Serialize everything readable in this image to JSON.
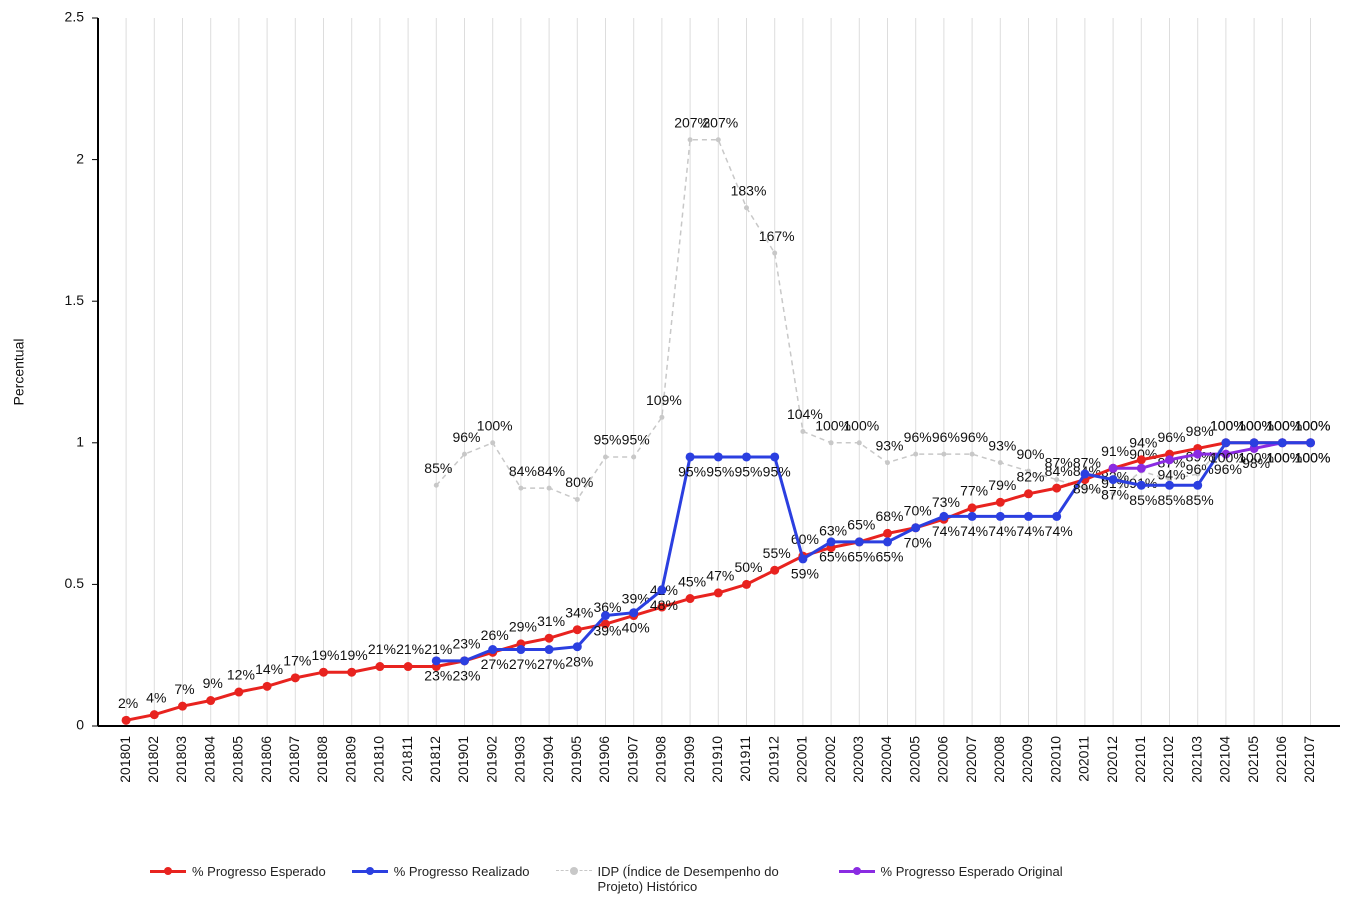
{
  "chart_data": {
    "type": "line",
    "y_label": "Percentual",
    "categories": [
      "201801",
      "201802",
      "201803",
      "201804",
      "201805",
      "201806",
      "201807",
      "201808",
      "201809",
      "201810",
      "201811",
      "201812",
      "201901",
      "201902",
      "201903",
      "201904",
      "201905",
      "201906",
      "201907",
      "201908",
      "201909",
      "201910",
      "201911",
      "201912",
      "202001",
      "202002",
      "202003",
      "202004",
      "202005",
      "202006",
      "202007",
      "202008",
      "202009",
      "202010",
      "202011",
      "202012",
      "202101",
      "202102",
      "202103",
      "202104",
      "202105",
      "202106",
      "202107"
    ],
    "ylim": [
      0,
      2.5
    ],
    "yticks": [
      0,
      0.5,
      1,
      1.5,
      2,
      2.5
    ],
    "grid": true,
    "legend": "bottom",
    "series": [
      {
        "name": "% Progresso Esperado",
        "color": "#e8231f",
        "dash": false,
        "values": [
          0.02,
          0.04,
          0.07,
          0.09,
          0.12,
          0.14,
          0.17,
          0.19,
          0.19,
          0.21,
          0.21,
          0.21,
          0.23,
          0.26,
          0.29,
          0.31,
          0.34,
          0.36,
          0.39,
          0.42,
          0.45,
          0.47,
          0.5,
          0.55,
          0.6,
          0.63,
          0.65,
          0.68,
          0.7,
          0.73,
          0.77,
          0.79,
          0.82,
          0.84,
          0.87,
          0.91,
          0.94,
          0.96,
          0.98,
          1.0,
          1.0,
          1.0,
          1.0
        ],
        "value_labels": [
          "2%",
          "4%",
          "7%",
          "9%",
          "12%",
          "14%",
          "17%",
          "19%",
          "19%",
          "21%",
          "21%",
          "21%",
          "23%",
          "26%",
          "29%",
          "31%",
          "34%",
          "36%",
          "39%",
          "42%",
          "45%",
          "47%",
          "50%",
          "55%",
          "60%",
          "63%",
          "65%",
          "68%",
          "70%",
          "73%",
          "77%",
          "79%",
          "82%",
          "84%",
          "87%",
          "91%",
          "94%",
          "96%",
          "98%",
          "100%",
          "100%",
          "100%",
          "100%"
        ]
      },
      {
        "name": "% Progresso Realizado",
        "color": "#2b3fe0",
        "dash": false,
        "values": [
          null,
          null,
          null,
          null,
          null,
          null,
          null,
          null,
          null,
          null,
          null,
          0.23,
          0.23,
          0.27,
          0.27,
          0.27,
          0.28,
          0.39,
          0.4,
          0.48,
          0.95,
          0.95,
          0.95,
          0.95,
          0.59,
          0.65,
          0.65,
          0.65,
          0.7,
          0.74,
          0.74,
          0.74,
          0.74,
          0.74,
          0.89,
          0.87,
          0.85,
          0.85,
          0.85,
          1.0,
          1.0,
          1.0,
          1.0
        ],
        "value_labels": [
          null,
          null,
          null,
          null,
          null,
          null,
          null,
          null,
          null,
          null,
          null,
          "23%",
          "23%",
          "27%",
          "27%",
          "27%",
          "28%",
          "39%",
          "40%",
          "48%",
          "95%",
          "95%",
          "95%",
          "95%",
          "59%",
          "65%",
          "65%",
          "65%",
          "70%",
          "74%",
          "74%",
          "74%",
          "74%",
          "74%",
          "89%",
          "87%",
          "85%",
          "85%",
          "85%",
          "100%",
          "100%",
          "100%",
          "100%"
        ]
      },
      {
        "name": "IDP (Índice de Desempenho do Projeto) Histórico",
        "color": "#c8c8c8",
        "dash": true,
        "values": [
          null,
          null,
          null,
          null,
          null,
          null,
          null,
          null,
          null,
          null,
          null,
          0.85,
          0.96,
          1.0,
          0.84,
          0.84,
          0.8,
          0.95,
          0.95,
          1.09,
          2.07,
          2.07,
          1.83,
          1.67,
          1.04,
          1.0,
          1.0,
          0.93,
          0.96,
          0.96,
          0.96,
          0.93,
          0.9,
          0.87,
          0.84,
          0.82,
          0.9,
          0.87,
          0.89,
          1.0,
          1.0,
          1.0,
          1.0
        ],
        "value_labels": [
          null,
          null,
          null,
          null,
          null,
          null,
          null,
          null,
          null,
          null,
          null,
          "85%",
          "96%",
          "100%",
          "84%",
          "84%",
          "80%",
          "95%",
          "95%",
          "109%",
          "207%",
          "207%",
          "183%",
          "167%",
          "104%",
          "100%",
          "100%",
          "93%",
          "96%",
          "96%",
          "96%",
          "93%",
          "90%",
          "87%",
          "84%",
          "82%",
          "90%",
          "87%",
          "89%",
          "100%",
          "100%",
          "100%",
          "100%"
        ]
      },
      {
        "name": "% Progresso Esperado Original",
        "color": "#8a2be2",
        "dash": false,
        "values": [
          null,
          null,
          null,
          null,
          null,
          null,
          null,
          null,
          null,
          null,
          null,
          null,
          null,
          null,
          null,
          null,
          null,
          null,
          null,
          null,
          null,
          null,
          null,
          null,
          null,
          null,
          null,
          null,
          null,
          null,
          null,
          null,
          null,
          null,
          null,
          0.91,
          0.91,
          0.94,
          0.96,
          0.96,
          0.98,
          1.0,
          1.0
        ],
        "value_labels": [
          null,
          null,
          null,
          null,
          null,
          null,
          null,
          null,
          null,
          null,
          null,
          null,
          null,
          null,
          null,
          null,
          null,
          null,
          null,
          null,
          null,
          null,
          null,
          null,
          null,
          null,
          null,
          null,
          null,
          null,
          null,
          null,
          null,
          null,
          null,
          "91%",
          "91%",
          "94%",
          "96%",
          "96%",
          "98%",
          "100%",
          "100%"
        ]
      }
    ]
  }
}
